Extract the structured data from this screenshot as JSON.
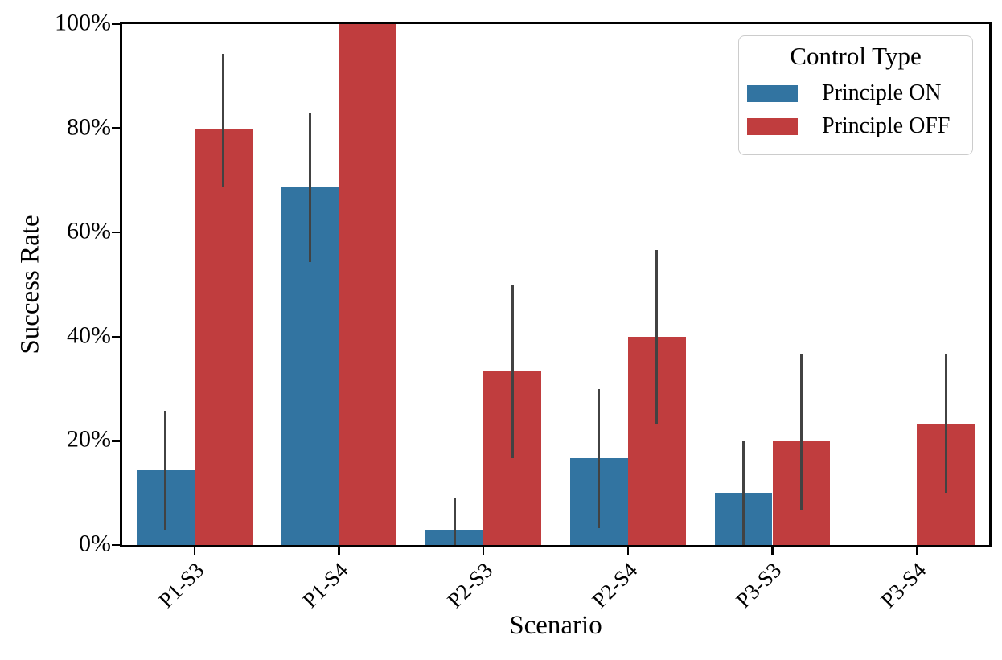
{
  "chart_data": {
    "type": "bar",
    "title": "",
    "xlabel": "Scenario",
    "ylabel": "Success Rate",
    "categories": [
      "P1-S3",
      "P1-S4",
      "P2-S3",
      "P2-S4",
      "P3-S3",
      "P3-S4"
    ],
    "series": [
      {
        "name": "Principle ON",
        "color": "#3274a1",
        "values": [
          14.3,
          68.6,
          2.9,
          16.7,
          10.0,
          0.0
        ],
        "err_low": [
          2.9,
          54.3,
          0.0,
          3.3,
          0.0,
          null
        ],
        "err_high": [
          25.7,
          82.9,
          9.1,
          30.0,
          20.0,
          null
        ]
      },
      {
        "name": "Principle OFF",
        "color": "#c03d3e",
        "values": [
          80.0,
          100.0,
          33.3,
          40.0,
          20.0,
          23.3
        ],
        "err_low": [
          68.6,
          null,
          16.7,
          23.3,
          6.7,
          10.0
        ],
        "err_high": [
          94.3,
          null,
          50.0,
          56.7,
          36.7,
          36.7
        ]
      }
    ],
    "ylim": [
      0,
      100
    ],
    "yticks": [
      {
        "value": 0,
        "label": "0%"
      },
      {
        "value": 20,
        "label": "20%"
      },
      {
        "value": 40,
        "label": "40%"
      },
      {
        "value": 60,
        "label": "60%"
      },
      {
        "value": 80,
        "label": "80%"
      },
      {
        "value": 100,
        "label": "100%"
      }
    ],
    "grid": false,
    "error_bar_color": "#424242",
    "legend": {
      "title": "Control Type",
      "position": "upper-right",
      "entries": [
        {
          "label": "Principle ON",
          "color": "#3274a1"
        },
        {
          "label": "Principle OFF",
          "color": "#c03d3e"
        }
      ]
    }
  }
}
